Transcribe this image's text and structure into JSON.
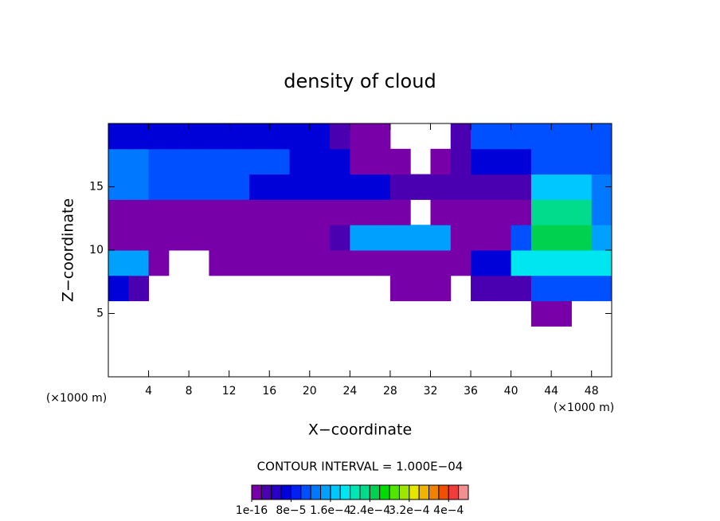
{
  "chart_data": {
    "type": "contour",
    "title": "density of cloud",
    "x_label": "X−coordinate",
    "y_label": "Z−coordinate",
    "x_unit": "(×1000 m)",
    "x_unit_right": "(×1000 m)",
    "annotation": "CONTOUR INTERVAL = 1.000E−04",
    "xlim": [
      0,
      50
    ],
    "ylim": [
      0,
      20
    ],
    "xticks": [
      4,
      8,
      12,
      16,
      20,
      24,
      28,
      32,
      36,
      40,
      44,
      48
    ],
    "yticks": [
      5,
      10,
      15
    ],
    "cell_width": 2,
    "cell_height": 2,
    "z": [
      [
        null,
        null,
        null,
        null,
        null,
        null,
        null,
        null,
        null,
        null,
        null,
        null,
        null,
        null,
        null,
        null,
        null,
        null,
        null,
        null,
        null,
        null,
        null,
        null,
        null
      ],
      [
        null,
        null,
        null,
        null,
        null,
        null,
        null,
        null,
        null,
        null,
        null,
        null,
        null,
        null,
        null,
        null,
        null,
        null,
        null,
        null,
        null,
        null,
        null,
        null,
        null
      ],
      [
        null,
        null,
        null,
        null,
        null,
        null,
        null,
        null,
        null,
        null,
        null,
        null,
        null,
        null,
        null,
        null,
        null,
        null,
        null,
        null,
        null,
        1e-05,
        1e-05,
        null,
        null
      ],
      [
        6e-05,
        3e-05,
        null,
        null,
        null,
        null,
        null,
        null,
        null,
        null,
        null,
        null,
        null,
        null,
        1e-05,
        1e-05,
        1e-05,
        null,
        3e-05,
        3e-05,
        3e-05,
        0.0001,
        0.0001,
        0.0001,
        0.0001
      ],
      [
        0.00015,
        0.00015,
        1e-05,
        null,
        null,
        1e-05,
        1e-05,
        1e-05,
        1e-05,
        1e-05,
        1e-05,
        1e-05,
        1e-05,
        1e-05,
        1e-05,
        1e-05,
        1e-05,
        1e-05,
        6e-05,
        6e-05,
        0.00018,
        0.00018,
        0.00018,
        0.00018,
        0.00018
      ],
      [
        1e-05,
        1e-05,
        1e-05,
        1e-05,
        1e-05,
        1e-05,
        1e-05,
        1e-05,
        1e-05,
        1e-05,
        1e-05,
        3e-05,
        0.00015,
        0.00015,
        0.00015,
        0.00015,
        0.00015,
        1e-05,
        1e-05,
        1e-05,
        0.0001,
        0.00024,
        0.00024,
        0.00024,
        0.00015
      ],
      [
        1e-05,
        1e-05,
        1e-05,
        1e-05,
        1e-05,
        1e-05,
        1e-05,
        1e-05,
        1e-05,
        1e-05,
        1e-05,
        1e-05,
        1e-05,
        1e-05,
        1e-05,
        null,
        1e-05,
        1e-05,
        1e-05,
        1e-05,
        1e-05,
        0.00022,
        0.00022,
        0.00022,
        0.00012
      ],
      [
        0.00012,
        0.00012,
        0.0001,
        0.0001,
        0.0001,
        0.0001,
        0.0001,
        6e-05,
        6e-05,
        6e-05,
        6e-05,
        6e-05,
        6e-05,
        6e-05,
        3e-05,
        3e-05,
        3e-05,
        3e-05,
        3e-05,
        3e-05,
        3e-05,
        0.00017,
        0.00017,
        0.00017,
        0.00012
      ],
      [
        0.00012,
        0.00012,
        0.0001,
        0.0001,
        0.0001,
        0.0001,
        0.0001,
        0.0001,
        0.0001,
        6e-05,
        6e-05,
        6e-05,
        1e-05,
        1e-05,
        1e-05,
        null,
        1e-05,
        3e-05,
        6e-05,
        6e-05,
        6e-05,
        0.0001,
        0.0001,
        0.0001,
        0.0001
      ],
      [
        6e-05,
        6e-05,
        6e-05,
        6e-05,
        6e-05,
        6e-05,
        6e-05,
        6e-05,
        6e-05,
        6e-05,
        6e-05,
        3e-05,
        1e-05,
        1e-05,
        null,
        null,
        null,
        3e-05,
        0.0001,
        0.0001,
        0.0001,
        0.0001,
        0.0001,
        0.0001,
        0.0001
      ]
    ],
    "colorbar": {
      "lim": [
        0,
        0.00044
      ],
      "colors": [
        "#7800a8",
        "#4a00b0",
        "#2800c8",
        "#0000d8",
        "#0020f0",
        "#0050ff",
        "#0078ff",
        "#00a0ff",
        "#00c8ff",
        "#00e6f0",
        "#00e6b4",
        "#00dc8c",
        "#00d250",
        "#00dc00",
        "#50e600",
        "#a0e600",
        "#e6e600",
        "#f0b400",
        "#f08200",
        "#f05000",
        "#f03c3c",
        "#f09090"
      ],
      "ticks": [
        1e-16,
        {
          "value": 8e-05,
          "label": "8e−5"
        },
        {
          "value": 0.00016,
          "label": "1.6e−4"
        },
        {
          "value": 0.00024,
          "label": "2.4e−4"
        },
        {
          "value": 0.00032,
          "label": "3.2e−4"
        },
        {
          "value": 0.0004,
          "label": "4e−4"
        }
      ]
    }
  }
}
